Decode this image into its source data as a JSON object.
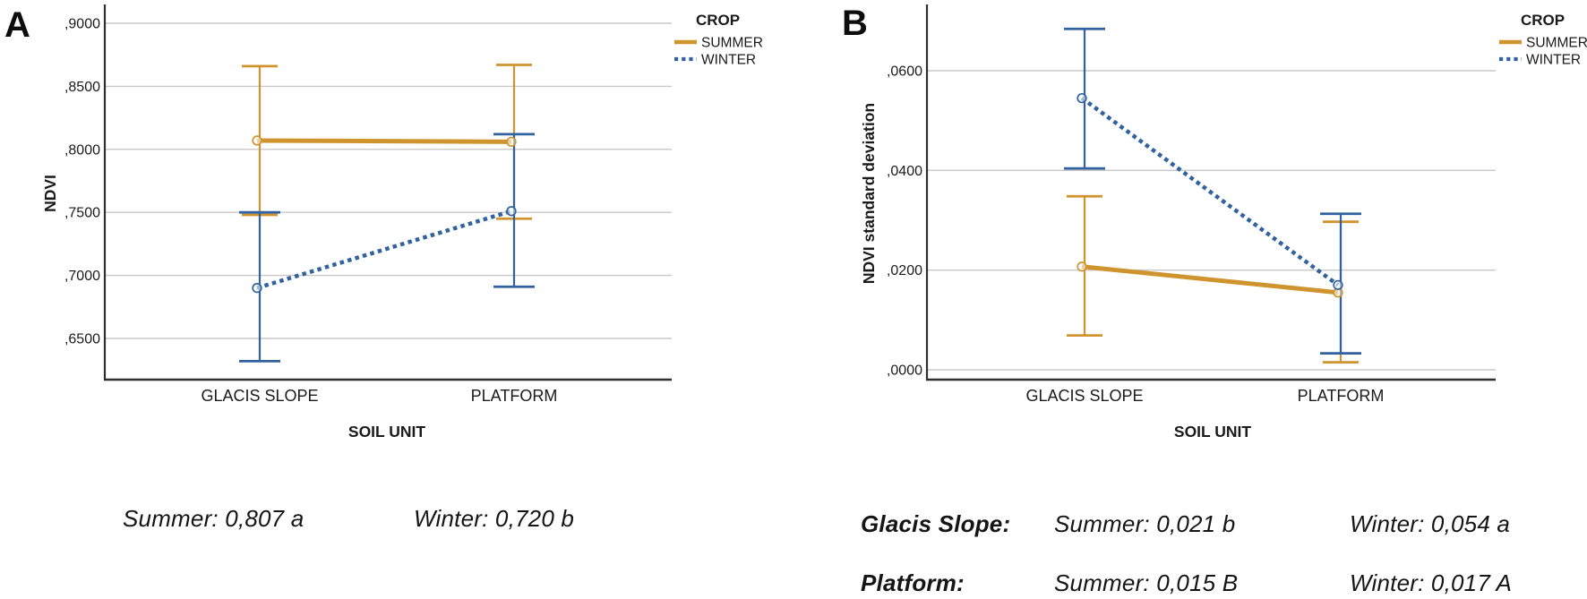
{
  "panels": [
    {
      "label": "A"
    },
    {
      "label": "B"
    }
  ],
  "chart_data": [
    {
      "type": "line",
      "panel": "A",
      "title": "",
      "xlabel": "SOIL UNIT",
      "ylabel": "NDVI",
      "categories": [
        "GLACIS SLOPE",
        "PLATFORM"
      ],
      "ylim": [
        0.617,
        0.913
      ],
      "grid": true,
      "yticks": [
        {
          "value": 0.9,
          "label": ",9000"
        },
        {
          "value": 0.85,
          "label": ",8500"
        },
        {
          "value": 0.8,
          "label": ",8000"
        },
        {
          "value": 0.75,
          "label": ",7500"
        },
        {
          "value": 0.7,
          "label": ",7000"
        },
        {
          "value": 0.65,
          "label": ",6500"
        }
      ],
      "legend": {
        "title": "CROP",
        "position": "top-right"
      },
      "series": [
        {
          "name": "SUMMER",
          "style": "solid",
          "color": "#D0942F",
          "values": [
            0.807,
            0.806
          ],
          "ci_low": [
            0.748,
            0.745
          ],
          "ci_high": [
            0.866,
            0.867
          ]
        },
        {
          "name": "WINTER",
          "style": "dotted",
          "color": "#31629F",
          "values": [
            0.69,
            0.751
          ],
          "ci_low": [
            0.632,
            0.691
          ],
          "ci_high": [
            0.75,
            0.812
          ]
        }
      ]
    },
    {
      "type": "line",
      "panel": "B",
      "title": "",
      "xlabel": "SOIL UNIT",
      "ylabel": "NDVI standard deviation",
      "categories": [
        "GLACIS SLOPE",
        "PLATFORM"
      ],
      "ylim": [
        -0.002,
        0.0728
      ],
      "grid": true,
      "yticks": [
        {
          "value": 0.06,
          "label": ",0600"
        },
        {
          "value": 0.04,
          "label": ",0400"
        },
        {
          "value": 0.02,
          "label": ",0200"
        },
        {
          "value": 0.0,
          "label": ",0000"
        }
      ],
      "legend": {
        "title": "CROP",
        "position": "top-right"
      },
      "series": [
        {
          "name": "SUMMER",
          "style": "solid",
          "color": "#D0942F",
          "values": [
            0.0207,
            0.0155
          ],
          "ci_low": [
            0.0069,
            0.0015
          ],
          "ci_high": [
            0.0348,
            0.0297
          ]
        },
        {
          "name": "WINTER",
          "style": "dotted",
          "color": "#31629F",
          "values": [
            0.0545,
            0.017
          ],
          "ci_low": [
            0.0404,
            0.0033
          ],
          "ci_high": [
            0.0684,
            0.0313
          ]
        }
      ]
    }
  ],
  "annotations": {
    "panel_a": [
      {
        "text": "Summer: 0,807 a"
      },
      {
        "text": "Winter: 0,720 b"
      }
    ],
    "panel_b": [
      {
        "label": "Glacis Slope:",
        "summer": "Summer: 0,021 b",
        "winter": "Winter: 0,054 a"
      },
      {
        "label": "Platform:",
        "summer": "Summer: 0,015 B",
        "winter": "Winter: 0,017 A"
      }
    ]
  },
  "colors": {
    "summer": "#D0942F",
    "winter": "#31629F",
    "grid": "#C8C8C8",
    "axis": "#2E2E2E",
    "text": "#1A1A1A"
  }
}
